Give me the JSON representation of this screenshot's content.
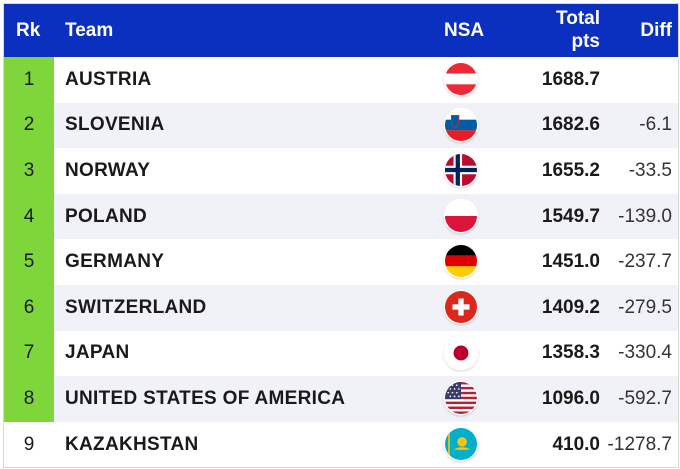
{
  "header": {
    "rank": "Rk",
    "team": "Team",
    "nsa": "NSA",
    "total_line1": "Total",
    "total_line2": "pts",
    "diff": "Diff"
  },
  "rows": [
    {
      "rank": "1",
      "team": "AUSTRIA",
      "flag": "austria-flag-icon",
      "total": "1688.7",
      "diff": ""
    },
    {
      "rank": "2",
      "team": "SLOVENIA",
      "flag": "slovenia-flag-icon",
      "total": "1682.6",
      "diff": "-6.1"
    },
    {
      "rank": "3",
      "team": "NORWAY",
      "flag": "norway-flag-icon",
      "total": "1655.2",
      "diff": "-33.5"
    },
    {
      "rank": "4",
      "team": "POLAND",
      "flag": "poland-flag-icon",
      "total": "1549.7",
      "diff": "-139.0"
    },
    {
      "rank": "5",
      "team": "GERMANY",
      "flag": "germany-flag-icon",
      "total": "1451.0",
      "diff": "-237.7"
    },
    {
      "rank": "6",
      "team": "SWITZERLAND",
      "flag": "switzerland-flag-icon",
      "total": "1409.2",
      "diff": "-279.5"
    },
    {
      "rank": "7",
      "team": "JAPAN",
      "flag": "japan-flag-icon",
      "total": "1358.3",
      "diff": "-330.4"
    },
    {
      "rank": "8",
      "team": "UNITED STATES OF AMERICA",
      "flag": "usa-flag-icon",
      "total": "1096.0",
      "diff": "-592.7"
    },
    {
      "rank": "9",
      "team": "KAZAKHSTAN",
      "flag": "kazakhstan-flag-icon",
      "total": "410.0",
      "diff": "-1278.7"
    }
  ],
  "colors": {
    "header_bg": "#0b2fbe",
    "qualified_rank_bg": "#7fd63a",
    "alt_row_bg": "#f1f1f8"
  }
}
